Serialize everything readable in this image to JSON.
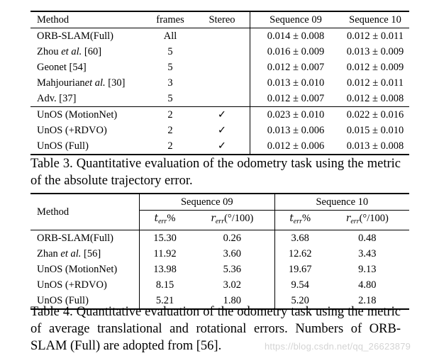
{
  "table3": {
    "headers": {
      "method": "Method",
      "frames": "frames",
      "stereo": "Stereo",
      "seq09": "Sequence 09",
      "seq10": "Sequence 10"
    },
    "rows": [
      {
        "method": "ORB-SLAM(Full)",
        "frames": "All",
        "stereo": "",
        "seq09": "0.014 ± 0.008",
        "seq10": "0.012 ± 0.011"
      },
      {
        "method_pre": "Zhou ",
        "method_em": "et al.",
        "method_post": " [60]",
        "frames": "5",
        "stereo": "",
        "seq09": "0.016 ± 0.009",
        "seq10": "0.013 ± 0.009"
      },
      {
        "method": "Geonet [54]",
        "frames": "5",
        "stereo": "",
        "seq09": "0.012 ± 0.007",
        "seq10": "0.012 ± 0.009"
      },
      {
        "method_pre": "Mahjourian",
        "method_em": "et al.",
        "method_post": " [30]",
        "frames": "3",
        "stereo": "",
        "seq09": "0.013 ± 0.010",
        "seq10": "0.012 ± 0.011"
      },
      {
        "method": "Adv. [37]",
        "frames": "5",
        "stereo": "",
        "seq09": "0.012 ± 0.007",
        "seq10": "0.012 ± 0.008"
      },
      {
        "method": "UnOS (MotionNet)",
        "frames": "2",
        "stereo": "✓",
        "seq09": "0.023 ± 0.010",
        "seq10": "0.022 ± 0.016"
      },
      {
        "method": "UnOS (+RDVO)",
        "frames": "2",
        "stereo": "✓",
        "seq09": "0.013 ± 0.006",
        "seq10": "0.015 ± 0.010"
      },
      {
        "method": "UnOS (Full)",
        "frames": "2",
        "stereo": "✓",
        "seq09": "0.012 ± 0.006",
        "seq10": "0.013 ± 0.008"
      }
    ]
  },
  "caption3": "Table 3. Quantitative evaluation of the odometry task using the metric of the absolute trajectory error.",
  "table4": {
    "headers": {
      "method": "Method",
      "seq09": "Sequence 09",
      "seq10": "Sequence 10",
      "t_err": "t",
      "t_err_sub": "err",
      "t_err_unit": "%",
      "r_err": "r",
      "r_err_sub": "err",
      "r_err_unit": "(°/100)"
    },
    "rows": [
      {
        "method": "ORB-SLAM(Full)",
        "t09": "15.30",
        "r09": "0.26",
        "t10": "3.68",
        "r10": "0.48"
      },
      {
        "method_pre": "Zhan ",
        "method_em": "et al.",
        "method_post": " [56]",
        "t09": "11.92",
        "r09": "3.60",
        "t10": "12.62",
        "r10": "3.43"
      },
      {
        "method": "UnOS (MotionNet)",
        "t09": "13.98",
        "r09": "5.36",
        "t10": "19.67",
        "r10": "9.13"
      },
      {
        "method": "UnOS (+RDVO)",
        "t09": "8.15",
        "r09": "3.02",
        "t10": "9.54",
        "r10": "4.80"
      },
      {
        "method": "UnOS (Full)",
        "t09": "5.21",
        "r09": "1.80",
        "t10": "5.20",
        "r10": "2.18"
      }
    ]
  },
  "caption4": "Table 4. Quantitative evaluation of the odometry task using the metric of average translational and rotational errors. Numbers of ORB-SLAM (Full) are adopted from [56].",
  "watermark": "https://blog.csdn.net/qq_26623879"
}
